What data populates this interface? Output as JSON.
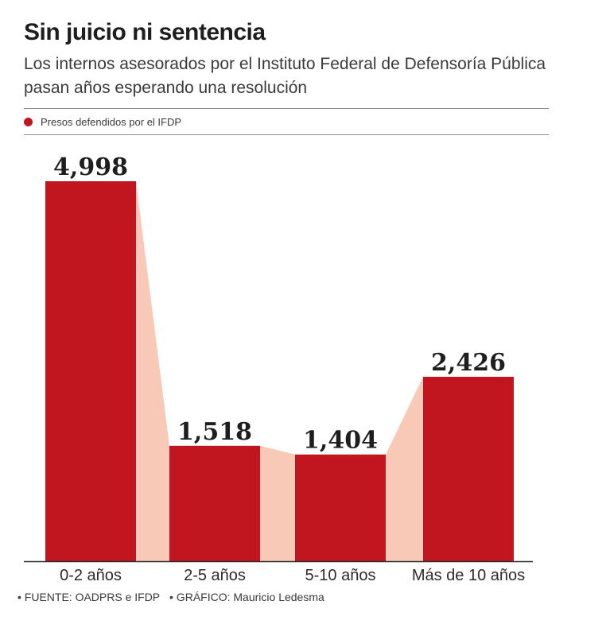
{
  "header": {
    "title": "Sin juicio ni sentencia",
    "subtitle": "Los internos asesorados por el Instituto Federal de Defensoría Pública pasan años esperando una resolución"
  },
  "legend": {
    "label": "Presos defendidos por el IFDP",
    "color": "#c1161f"
  },
  "colors": {
    "bar": "#c1161f",
    "connector": "#f7c9b6",
    "axis": "#2b2b2b"
  },
  "chart_data": {
    "type": "bar",
    "title": "Sin juicio ni sentencia",
    "categories": [
      "0-2 años",
      "2-5 años",
      "5-10 años",
      "Más de 10 años"
    ],
    "series": [
      {
        "name": "Presos defendidos por el IFDP",
        "values": [
          4998,
          1518,
          1404,
          2426
        ]
      }
    ],
    "value_labels": [
      "4,998",
      "1,518",
      "1,404",
      "2,426"
    ],
    "xlabel": "",
    "ylabel": "",
    "ylim": [
      0,
      5500
    ],
    "grid": false,
    "legend_position": "top-left"
  },
  "footer": {
    "source": "• FUENTE: OADPRS e IFDP",
    "credit": "• GRÁFICO: Mauricio Ledesma"
  }
}
